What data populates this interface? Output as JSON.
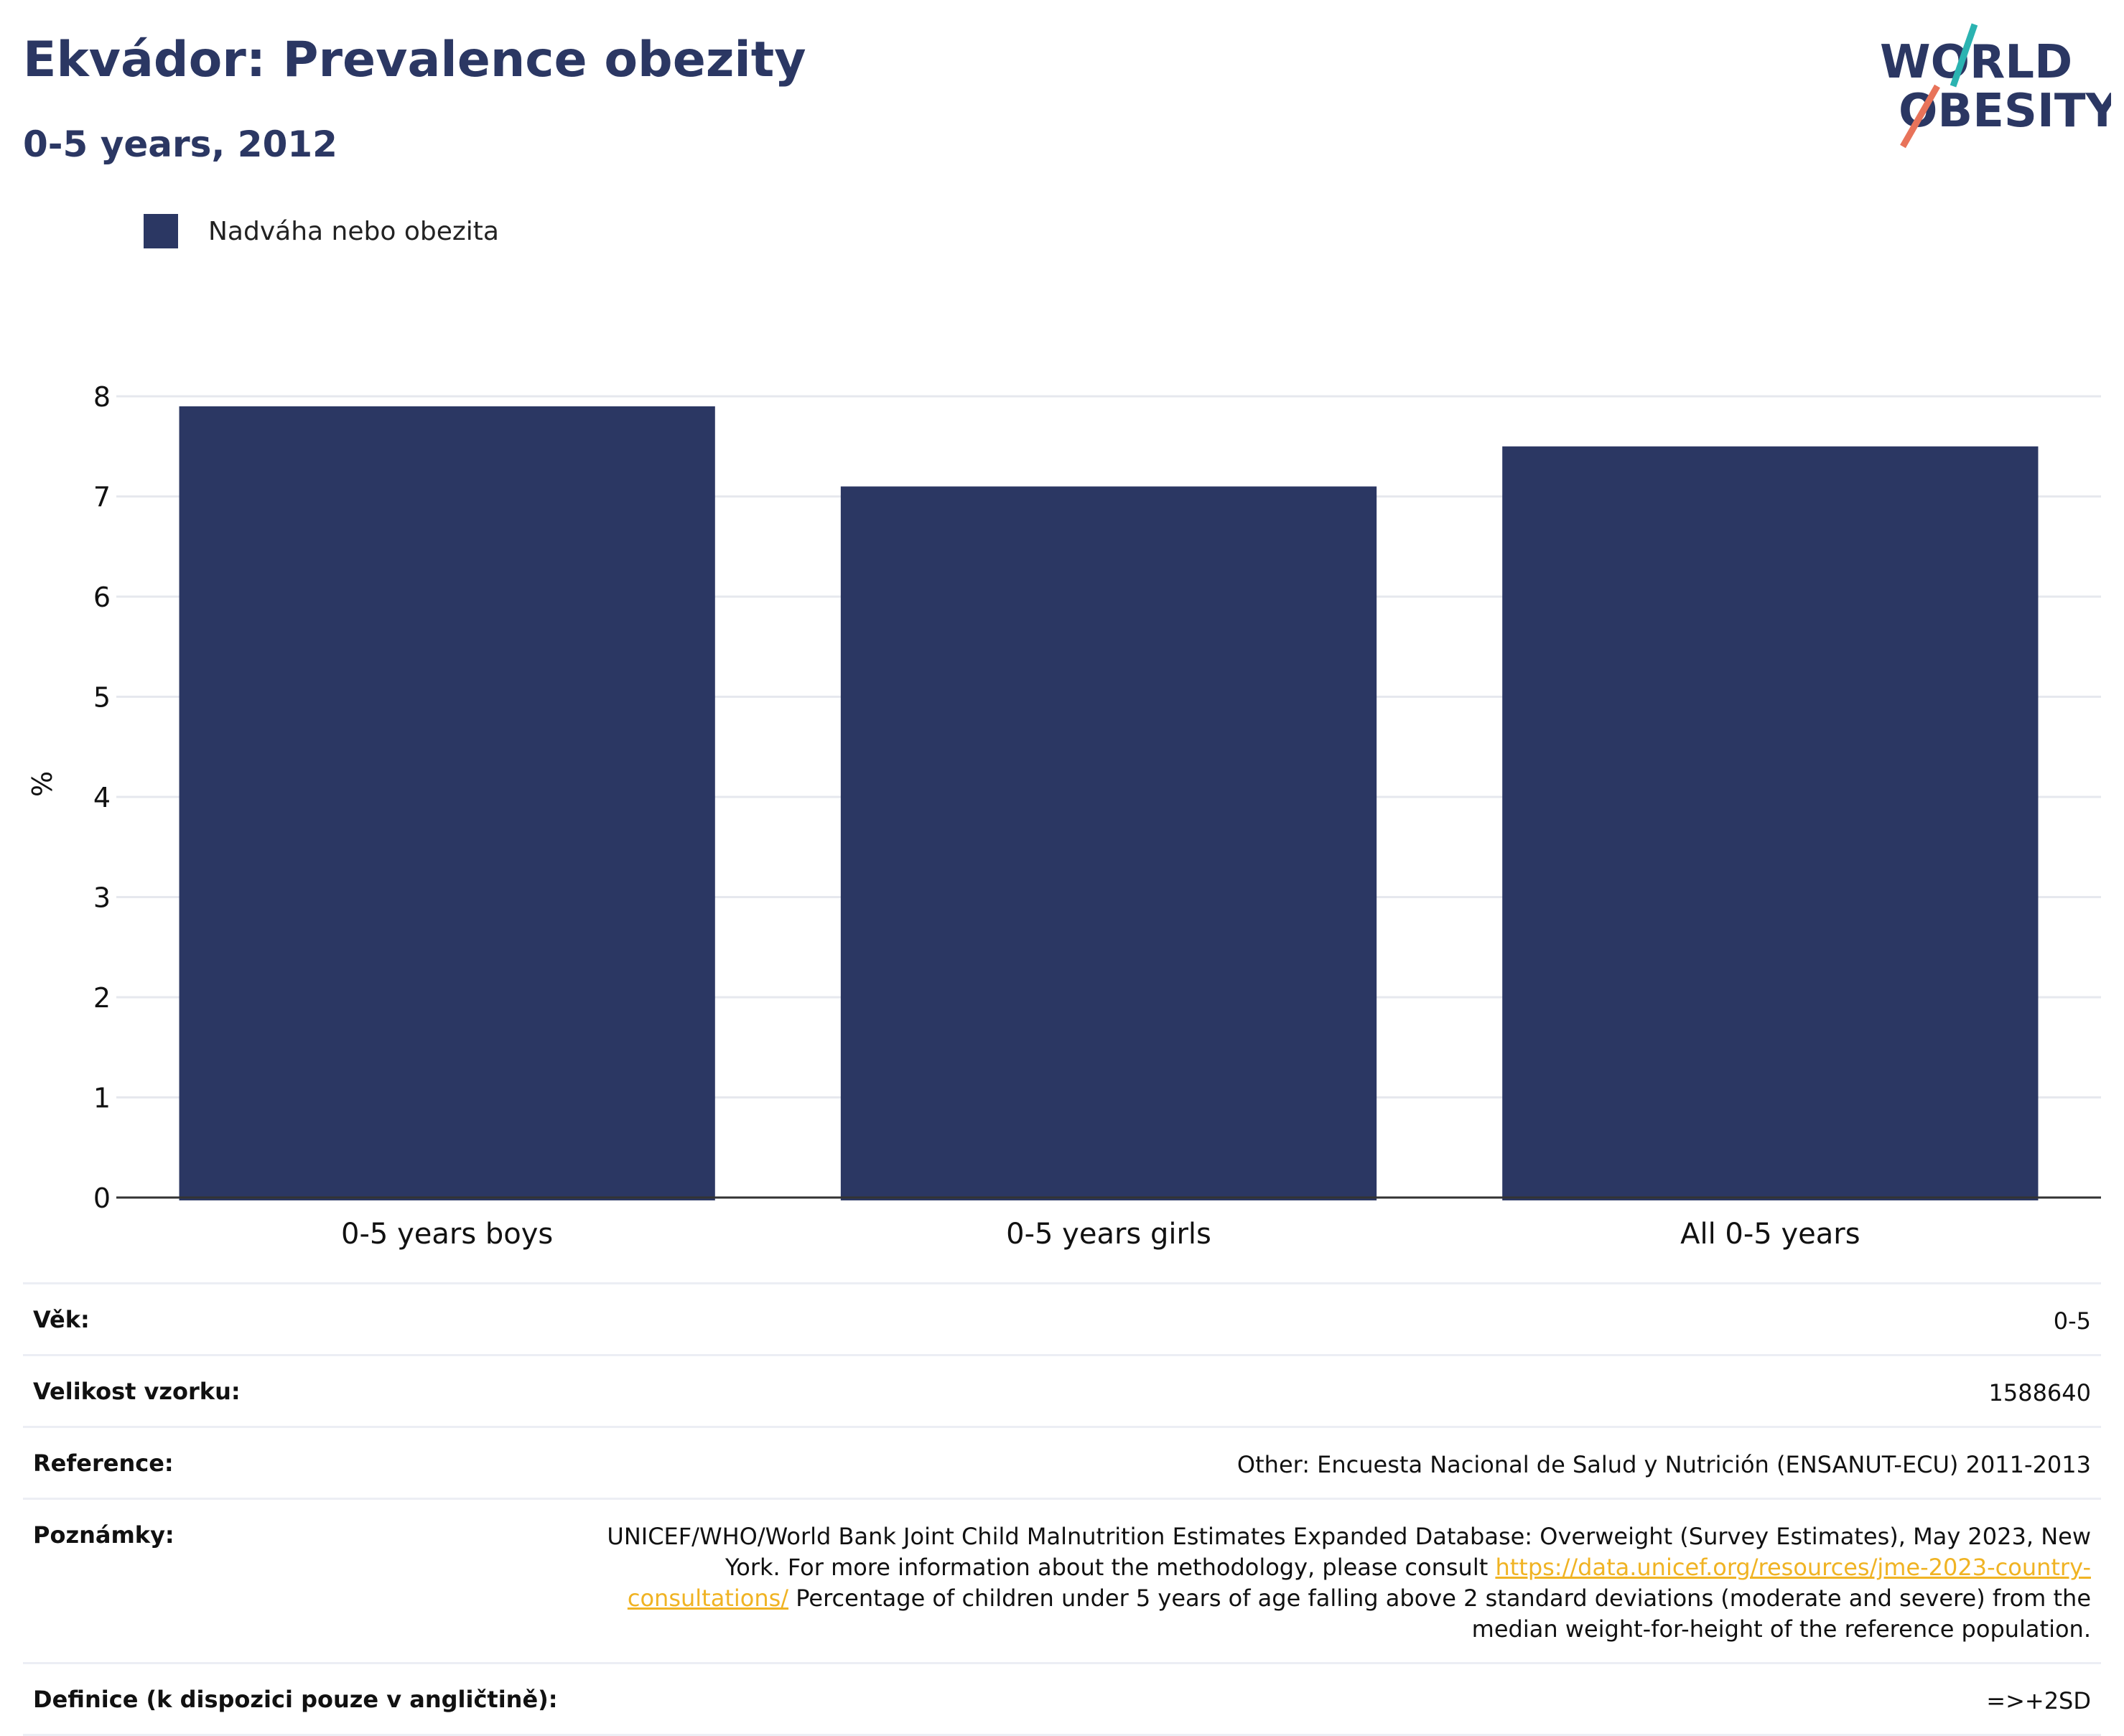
{
  "header": {
    "title": "Ekvádor: Prevalence obezity",
    "subtitle": "0-5 years, 2012"
  },
  "logo": {
    "line1": "WORLD",
    "line2": "OBESITY",
    "slash_colors": [
      "#2bb3b1",
      "#e8735a"
    ]
  },
  "legend": {
    "items": [
      {
        "label": "Nadváha nebo obezita",
        "color": "#2b3763"
      }
    ]
  },
  "chart_data": {
    "type": "bar",
    "categories": [
      "0-5 years boys",
      "0-5 years girls",
      "All 0-5 years"
    ],
    "series": [
      {
        "name": "Nadváha nebo obezita",
        "values": [
          7.9,
          7.1,
          7.5
        ],
        "color": "#2b3763"
      }
    ],
    "ylabel": "%",
    "xlabel": "",
    "ylim": [
      0,
      8
    ],
    "yticks": [
      0,
      1,
      2,
      3,
      4,
      5,
      6,
      7,
      8
    ],
    "grid": true,
    "legend_position": "top-left"
  },
  "meta": {
    "age_label": "Věk:",
    "age_value": "0-5",
    "sample_label": "Velikost vzorku:",
    "sample_value": "1588640",
    "reference_label": "Reference:",
    "reference_value": "Other: Encuesta Nacional de Salud y Nutrición (ENSANUT-ECU) 2011-2013",
    "notes_label": "Poznámky:",
    "notes_text_1": "UNICEF/WHO/World Bank Joint Child Malnutrition Estimates Expanded Database: Overweight (Survey Estimates), May 2023, New York. For more information about the methodology, please consult ",
    "notes_link": "https://data.unicef.org/resources/jme-2023-country-consultations/",
    "notes_text_2": " Percentage of children under 5 years of age falling above 2 standard deviations (moderate and severe) from the median weight-for-height of the reference population.",
    "definition_label": "Definice (k dispozici pouze v angličtině):",
    "definition_value": "=>+2SD"
  }
}
